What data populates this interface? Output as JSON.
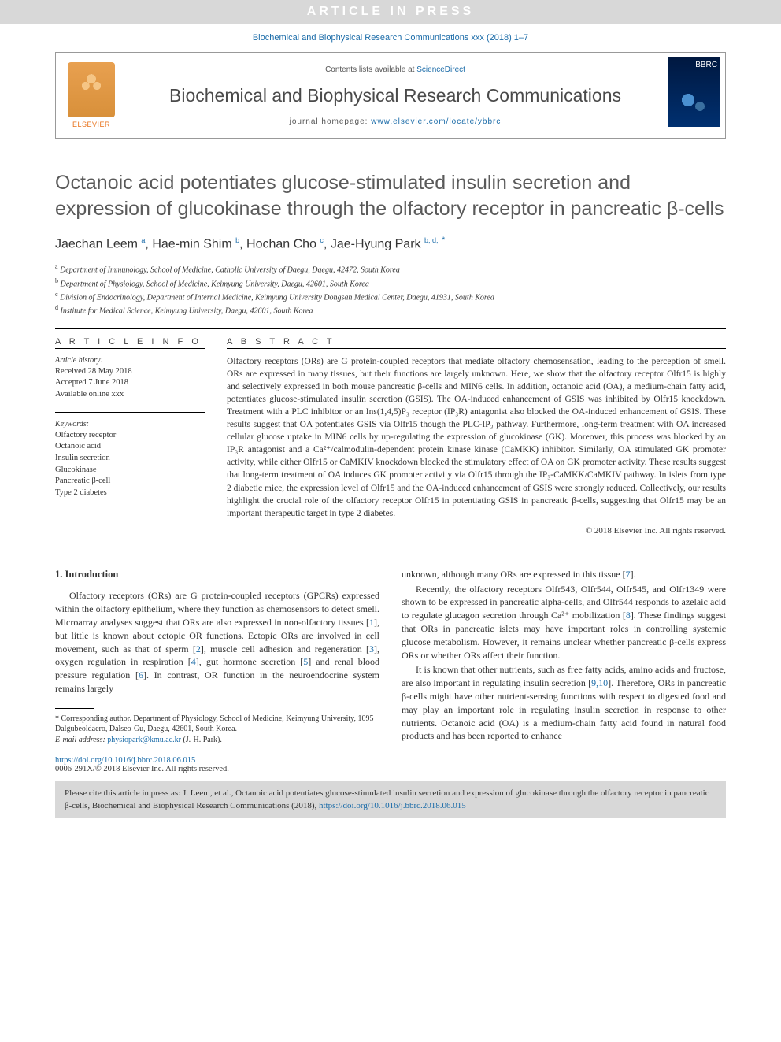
{
  "banner": "ARTICLE IN PRESS",
  "top_citation": "Biochemical and Biophysical Research Communications xxx (2018) 1–7",
  "header": {
    "contents_prefix": "Contents lists available at ",
    "contents_link": "ScienceDirect",
    "journal_name": "Biochemical and Biophysical Research Communications",
    "homepage_prefix": "journal homepage: ",
    "homepage_url": "www.elsevier.com/locate/ybbrc",
    "publisher": "ELSEVIER"
  },
  "title": "Octanoic acid potentiates glucose-stimulated insulin secretion and expression of glucokinase through the olfactory receptor in pancreatic β-cells",
  "authors_html": "Jaechan Leem <sup>a</sup>, Hae-min Shim <sup>b</sup>, Hochan Cho <sup>c</sup>, Jae-Hyung Park <sup>b, d,</sup> <sup class='star-sup'>*</sup>",
  "affiliations": [
    "a Department of Immunology, School of Medicine, Catholic University of Daegu, Daegu, 42472, South Korea",
    "b Department of Physiology, School of Medicine, Keimyung University, Daegu, 42601, South Korea",
    "c Division of Endocrinology, Department of Internal Medicine, Keimyung University Dongsan Medical Center, Daegu, 41931, South Korea",
    "d Institute for Medical Science, Keimyung University, Daegu, 42601, South Korea"
  ],
  "article_info": {
    "heading": "A R T I C L E   I N F O",
    "history_label": "Article history:",
    "history": [
      "Received 28 May 2018",
      "Accepted 7 June 2018",
      "Available online xxx"
    ],
    "keywords_label": "Keywords:",
    "keywords": [
      "Olfactory receptor",
      "Octanoic acid",
      "Insulin secretion",
      "Glucokinase",
      "Pancreatic β-cell",
      "Type 2 diabetes"
    ]
  },
  "abstract": {
    "heading": "A B S T R A C T",
    "text": "Olfactory receptors (ORs) are G protein-coupled receptors that mediate olfactory chemosensation, leading to the perception of smell. ORs are expressed in many tissues, but their functions are largely unknown. Here, we show that the olfactory receptor Olfr15 is highly and selectively expressed in both mouse pancreatic β-cells and MIN6 cells. In addition, octanoic acid (OA), a medium-chain fatty acid, potentiates glucose-stimulated insulin secretion (GSIS). The OA-induced enhancement of GSIS was inhibited by Olfr15 knockdown. Treatment with a PLC inhibitor or an Ins(1,4,5)P₃ receptor (IP₃R) antagonist also blocked the OA-induced enhancement of GSIS. These results suggest that OA potentiates GSIS via Olfr15 though the PLC-IP₃ pathway. Furthermore, long-term treatment with OA increased cellular glucose uptake in MIN6 cells by up-regulating the expression of glucokinase (GK). Moreover, this process was blocked by an IP₃R antagonist and a Ca²⁺/calmodulin-dependent protein kinase kinase (CaMKK) inhibitor. Similarly, OA stimulated GK promoter activity, while either Olfr15 or CaMKIV knockdown blocked the stimulatory effect of OA on GK promoter activity. These results suggest that long-term treatment of OA induces GK promoter activity via Olfr15 through the IP₃-CaMKK/CaMKIV pathway. In islets from type 2 diabetic mice, the expression level of Olfr15 and the OA-induced enhancement of GSIS were strongly reduced. Collectively, our results highlight the crucial role of the olfactory receptor Olfr15 in potentiating GSIS in pancreatic β-cells, suggesting that Olfr15 may be an important therapeutic target in type 2 diabetes.",
    "copyright": "© 2018 Elsevier Inc. All rights reserved."
  },
  "body": {
    "section_heading": "1. Introduction",
    "col1_p1": "Olfactory receptors (ORs) are G protein-coupled receptors (GPCRs) expressed within the olfactory epithelium, where they function as chemosensors to detect smell. Microarray analyses suggest that ORs are also expressed in non-olfactory tissues [1], but little is known about ectopic OR functions. Ectopic ORs are involved in cell movement, such as that of sperm [2], muscle cell adhesion and regeneration [3], oxygen regulation in respiration [4], gut hormone secretion [5] and renal blood pressure regulation [6]. In contrast, OR function in the neuroendocrine system remains largely",
    "col2_p1": "unknown, although many ORs are expressed in this tissue [7].",
    "col2_p2": "Recently, the olfactory receptors Olfr543, Olfr544, Olfr545, and Olfr1349 were shown to be expressed in pancreatic alpha-cells, and Olfr544 responds to azelaic acid to regulate glucagon secretion through Ca²⁺ mobilization [8]. These findings suggest that ORs in pancreatic islets may have important roles in controlling systemic glucose metabolism. However, it remains unclear whether pancreatic β-cells express ORs or whether ORs affect their function.",
    "col2_p3": "It is known that other nutrients, such as free fatty acids, amino acids and fructose, are also important in regulating insulin secretion [9,10]. Therefore, ORs in pancreatic β-cells might have other nutrient-sensing functions with respect to digested food and may play an important role in regulating insulin secretion in response to other nutrients. Octanoic acid (OA) is a medium-chain fatty acid found in natural food products and has been reported to enhance"
  },
  "footnote": {
    "text": "* Corresponding author. Department of Physiology, School of Medicine, Keimyung University, 1095 Dalgubeoldaero, Dalseo-Gu, Daegu, 42601, South Korea.",
    "email_label": "E-mail address: ",
    "email": "physiopark@kmu.ac.kr",
    "email_suffix": " (J.-H. Park)."
  },
  "doi": {
    "url": "https://doi.org/10.1016/j.bbrc.2018.06.015",
    "copy": "0006-291X/© 2018 Elsevier Inc. All rights reserved."
  },
  "citation_box": {
    "text": "Please cite this article in press as: J. Leem, et al., Octanoic acid potentiates glucose-stimulated insulin secretion and expression of glucokinase through the olfactory receptor in pancreatic β-cells, Biochemical and Biophysical Research Communications (2018), ",
    "url": "https://doi.org/10.1016/j.bbrc.2018.06.015"
  },
  "colors": {
    "link": "#1a6ba8",
    "banner_bg": "#d8d8d8",
    "text": "#333333"
  }
}
